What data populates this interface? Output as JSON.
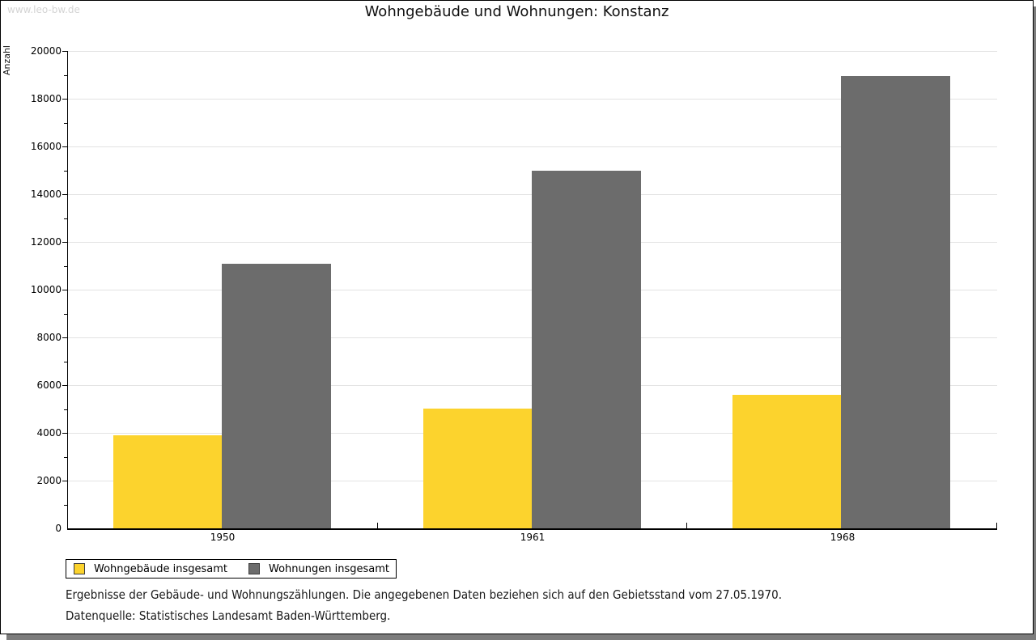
{
  "watermark": "www.leo-bw.de",
  "header": {
    "title": "Wohngebäude und Wohnungen: Konstanz"
  },
  "footnotes": [
    "Ergebnisse der Gebäude- und Wohnungszählungen. Die angegebenen Daten beziehen sich auf den Gebietsstand vom 27.05.1970.",
    "Datenquelle: Statistisches Landesamt Baden-Württemberg."
  ],
  "colors": {
    "series1": "#fcd32d",
    "series2": "#6c6c6c",
    "gridline": "#e3e3e3",
    "shadow": "#7c7c7c",
    "watermark": "#d4d4d4"
  },
  "chart_data": {
    "type": "bar",
    "title": "Wohngebäude und Wohnungen: Konstanz",
    "categories": [
      "1950",
      "1961",
      "1968"
    ],
    "series": [
      {
        "name": "Wohngebäude insgesamt",
        "color": "#fcd32d",
        "values": [
          3890,
          5030,
          5580
        ]
      },
      {
        "name": "Wohnungen insgesamt",
        "color": "#6c6c6c",
        "values": [
          11080,
          14990,
          18950
        ]
      }
    ],
    "xlabel": "",
    "ylabel": "Anzahl",
    "ylim": [
      0,
      20000
    ],
    "y_major_step": 2000,
    "y_minor_step": 1000,
    "grid": true,
    "legend_position": "bottom-left"
  }
}
